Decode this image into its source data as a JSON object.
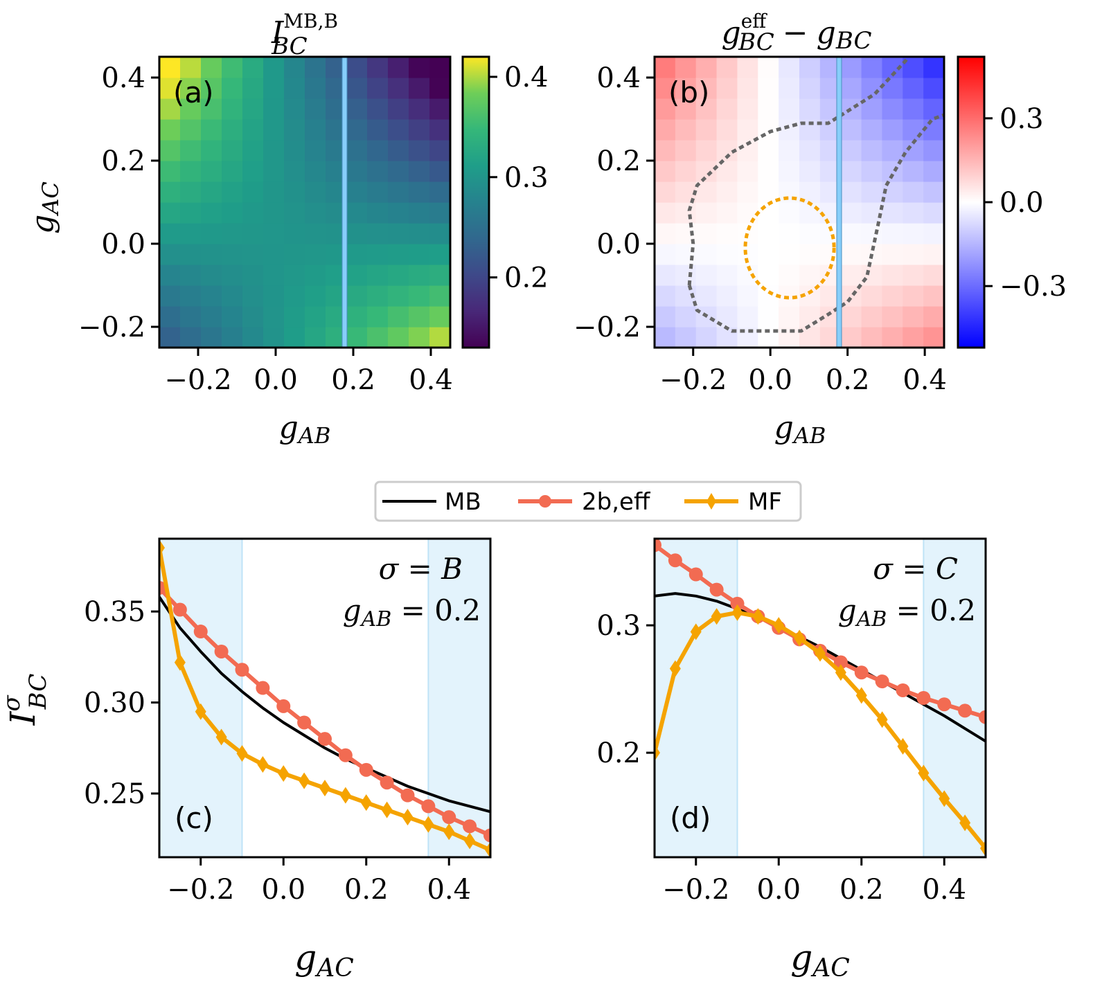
{
  "chart_data": [
    {
      "panel": "a",
      "type": "heatmap",
      "label": "(a)",
      "title_main": "I",
      "title_sup": "MB,B",
      "title_sub": "BC",
      "xlabel_main": "g",
      "xlabel_sub": "AB",
      "ylabel_main": "g",
      "ylabel_sub": "AC",
      "xlim": [
        -0.3,
        0.45
      ],
      "ylim": [
        -0.25,
        0.45
      ],
      "x_ticks": [
        -0.2,
        0.0,
        0.2,
        0.4
      ],
      "x_tick_labels": [
        "−0.2",
        "0.0",
        "0.2",
        "0.4"
      ],
      "y_ticks": [
        -0.2,
        0.0,
        0.2,
        0.4
      ],
      "y_tick_labels": [
        "−0.2",
        "0.0",
        "0.2",
        "0.4"
      ],
      "colormap": "viridis",
      "colorbar_range": [
        0.13,
        0.42
      ],
      "colorbar_ticks": [
        0.2,
        0.3,
        0.4
      ],
      "colorbar_tick_labels": [
        "0.2",
        "0.3",
        "0.4"
      ],
      "grid_size": [
        14,
        14
      ],
      "value_model": "value = 0.30 - 0.16*gAB*gAC/(0.35*0.45) + 0.06*gAC*(0.1 - gAB)",
      "marker_line_x": 0.2,
      "marker_line_color": "#87cefa"
    },
    {
      "panel": "b",
      "type": "heatmap",
      "label": "(b)",
      "title_lhs_main": "g",
      "title_lhs_sup": "eff",
      "title_lhs_sub": "BC",
      "title_op": "−",
      "title_rhs_main": "g",
      "title_rhs_sub": "BC",
      "xlabel_main": "g",
      "xlabel_sub": "AB",
      "xlim": [
        -0.3,
        0.45
      ],
      "ylim": [
        -0.25,
        0.45
      ],
      "x_ticks": [
        -0.2,
        0.0,
        0.2,
        0.4
      ],
      "x_tick_labels": [
        "−0.2",
        "0.0",
        "0.2",
        "0.4"
      ],
      "y_ticks": [
        -0.2,
        0.0,
        0.2,
        0.4
      ],
      "y_tick_labels": [
        "−0.2",
        "0.0",
        "0.2",
        "0.4"
      ],
      "colormap": "bwr",
      "colorbar_range": [
        -0.52,
        0.52
      ],
      "colorbar_ticks": [
        -0.3,
        0.0,
        0.3
      ],
      "colorbar_tick_labels": [
        "−0.3",
        "0.0",
        "0.3"
      ],
      "grid_size": [
        14,
        14
      ],
      "value_model": "value = -2.3*gAB*gAC",
      "marker_line_x": 0.2,
      "marker_line_color": "#87cefa",
      "contour_gray": [
        [
          -0.21,
          -0.1
        ],
        [
          -0.2,
          0.0
        ],
        [
          -0.21,
          0.08
        ],
        [
          -0.19,
          0.14
        ],
        [
          -0.1,
          0.22
        ],
        [
          0.0,
          0.27
        ],
        [
          0.08,
          0.29
        ],
        [
          0.15,
          0.29
        ],
        [
          0.27,
          0.36
        ],
        [
          0.35,
          0.44
        ],
        [
          0.37,
          0.47
        ]
      ],
      "contour_gray_2": [
        [
          -0.21,
          -0.1
        ],
        [
          -0.19,
          -0.16
        ],
        [
          -0.1,
          -0.21
        ],
        [
          0.0,
          -0.21
        ],
        [
          0.08,
          -0.21
        ],
        [
          0.15,
          -0.17
        ],
        [
          0.2,
          -0.14
        ],
        [
          0.25,
          -0.08
        ],
        [
          0.28,
          0.05
        ],
        [
          0.3,
          0.14
        ],
        [
          0.35,
          0.22
        ],
        [
          0.42,
          0.3
        ],
        [
          0.45,
          0.31
        ]
      ],
      "contour_gray_color": "#666666",
      "contour_orange": "circle centre (0.05, -0.01), radii (0.115, 0.12)",
      "contour_orange_color": "#f5a300"
    },
    {
      "panel": "c",
      "type": "line",
      "label": "(c)",
      "annotation_lines": [
        "σ = B",
        "g_AB = 0.2"
      ],
      "ylabel_main": "I",
      "ylabel_sup": "σ",
      "ylabel_sub": "BC",
      "xlabel_main": "g",
      "xlabel_sub": "AC",
      "xlim": [
        -0.3,
        0.5
      ],
      "ylim": [
        0.215,
        0.39
      ],
      "x_ticks": [
        -0.2,
        0.0,
        0.2,
        0.4
      ],
      "x_tick_labels": [
        "−0.2",
        "0.0",
        "0.2",
        "0.4"
      ],
      "y_ticks": [
        0.25,
        0.3,
        0.35
      ],
      "y_tick_labels": [
        "0.25",
        "0.30",
        "0.35"
      ],
      "shaded_x_ranges": [
        [
          -0.3,
          -0.1
        ],
        [
          0.35,
          0.5
        ]
      ],
      "series": [
        {
          "name": "MB",
          "color": "#000000",
          "marker": "none",
          "x": [
            -0.3,
            -0.25,
            -0.2,
            -0.15,
            -0.1,
            -0.05,
            0.0,
            0.05,
            0.1,
            0.15,
            0.2,
            0.25,
            0.3,
            0.35,
            0.4,
            0.45,
            0.5
          ],
          "y": [
            0.358,
            0.341,
            0.328,
            0.316,
            0.306,
            0.297,
            0.289,
            0.282,
            0.275,
            0.269,
            0.264,
            0.259,
            0.254,
            0.25,
            0.246,
            0.243,
            0.24
          ]
        },
        {
          "name": "2b,eff",
          "color": "#f26b52",
          "marker": "circle",
          "x": [
            -0.3,
            -0.25,
            -0.2,
            -0.15,
            -0.1,
            -0.05,
            0.0,
            0.05,
            0.1,
            0.15,
            0.2,
            0.25,
            0.3,
            0.35,
            0.4,
            0.45,
            0.5
          ],
          "y": [
            0.363,
            0.351,
            0.339,
            0.328,
            0.318,
            0.308,
            0.298,
            0.289,
            0.28,
            0.271,
            0.263,
            0.256,
            0.249,
            0.243,
            0.237,
            0.232,
            0.227
          ]
        },
        {
          "name": "MF",
          "color": "#f5a300",
          "marker": "diamond",
          "x": [
            -0.3,
            -0.25,
            -0.2,
            -0.15,
            -0.1,
            -0.05,
            0.0,
            0.05,
            0.1,
            0.15,
            0.2,
            0.25,
            0.3,
            0.35,
            0.4,
            0.45,
            0.5
          ],
          "y": [
            0.385,
            0.322,
            0.295,
            0.281,
            0.272,
            0.266,
            0.261,
            0.257,
            0.253,
            0.249,
            0.245,
            0.241,
            0.237,
            0.233,
            0.229,
            0.224,
            0.219
          ]
        }
      ]
    },
    {
      "panel": "d",
      "type": "line",
      "label": "(d)",
      "annotation_lines": [
        "σ = C",
        "g_AB = 0.2"
      ],
      "xlabel_main": "g",
      "xlabel_sub": "AC",
      "xlim": [
        -0.3,
        0.5
      ],
      "ylim": [
        0.118,
        0.368
      ],
      "x_ticks": [
        -0.2,
        0.0,
        0.2,
        0.4
      ],
      "x_tick_labels": [
        "−0.2",
        "0.0",
        "0.2",
        "0.4"
      ],
      "y_ticks": [
        0.2,
        0.3
      ],
      "y_tick_labels": [
        "0.2",
        "0.3"
      ],
      "shaded_x_ranges": [
        [
          -0.3,
          -0.1
        ],
        [
          0.35,
          0.5
        ]
      ],
      "series": [
        {
          "name": "MB",
          "color": "#000000",
          "marker": "none",
          "x": [
            -0.3,
            -0.25,
            -0.2,
            -0.15,
            -0.1,
            -0.05,
            0.0,
            0.05,
            0.1,
            0.15,
            0.2,
            0.25,
            0.3,
            0.35,
            0.4,
            0.45,
            0.5
          ],
          "y": [
            0.323,
            0.325,
            0.323,
            0.319,
            0.313,
            0.306,
            0.299,
            0.291,
            0.283,
            0.274,
            0.265,
            0.256,
            0.247,
            0.238,
            0.229,
            0.219,
            0.209
          ]
        },
        {
          "name": "2b,eff",
          "color": "#f26b52",
          "marker": "circle",
          "x": [
            -0.3,
            -0.25,
            -0.2,
            -0.15,
            -0.1,
            -0.05,
            0.0,
            0.05,
            0.1,
            0.15,
            0.2,
            0.25,
            0.3,
            0.35,
            0.4,
            0.45,
            0.5
          ],
          "y": [
            0.363,
            0.351,
            0.34,
            0.328,
            0.317,
            0.307,
            0.298,
            0.289,
            0.28,
            0.271,
            0.263,
            0.256,
            0.249,
            0.243,
            0.238,
            0.233,
            0.228
          ]
        },
        {
          "name": "MF",
          "color": "#f5a300",
          "marker": "diamond",
          "x": [
            -0.3,
            -0.25,
            -0.2,
            -0.15,
            -0.1,
            -0.05,
            0.0,
            0.05,
            0.1,
            0.15,
            0.2,
            0.25,
            0.3,
            0.35,
            0.4,
            0.45,
            0.5
          ],
          "y": [
            0.2,
            0.266,
            0.295,
            0.307,
            0.31,
            0.307,
            0.3,
            0.29,
            0.278,
            0.263,
            0.245,
            0.226,
            0.205,
            0.184,
            0.164,
            0.145,
            0.125
          ]
        }
      ]
    }
  ],
  "legend": {
    "items": [
      {
        "label": "MB",
        "color": "#000000",
        "marker": "none"
      },
      {
        "label": "2b,eff",
        "color": "#f26b52",
        "marker": "circle"
      },
      {
        "label": "MF",
        "color": "#f5a300",
        "marker": "diamond"
      }
    ]
  }
}
